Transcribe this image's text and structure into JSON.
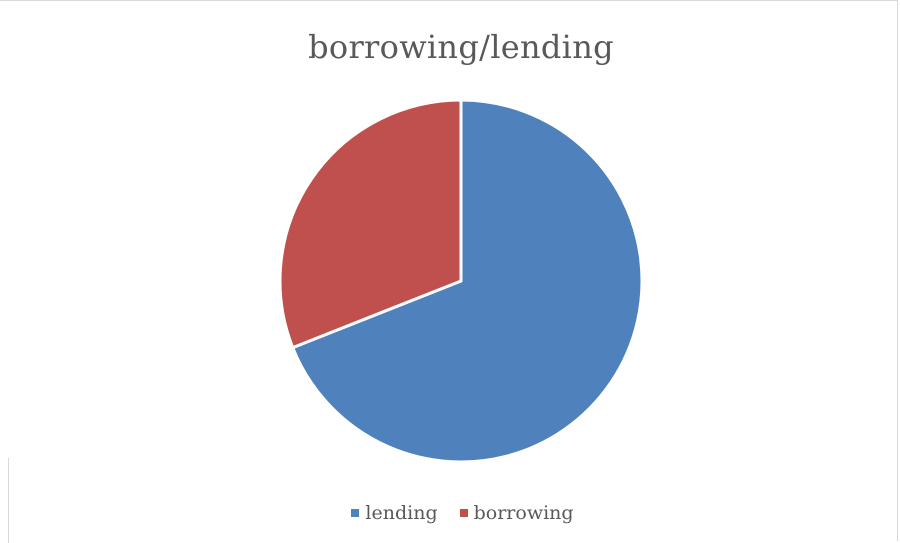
{
  "chart_data": {
    "type": "pie",
    "title": "borrowing/lending",
    "categories": [
      "lending",
      "borrowing"
    ],
    "values": [
      69,
      31
    ],
    "colors": [
      "#4f81bd",
      "#c0504d"
    ],
    "start_angle_deg": 0,
    "legend_position": "bottom"
  }
}
